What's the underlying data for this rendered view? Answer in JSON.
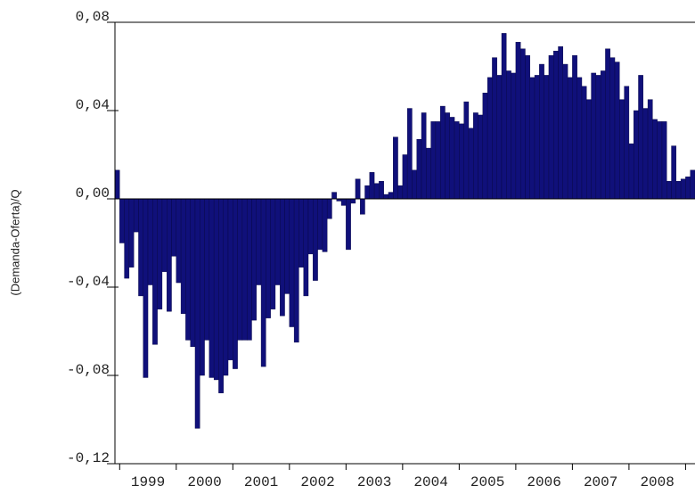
{
  "chart_data": {
    "type": "bar",
    "y_label": "(Demanda-Oferta)/Q",
    "categories": [
      null,
      null,
      null,
      null,
      null,
      null,
      null,
      "1999",
      null,
      null,
      null,
      null,
      null,
      null,
      null,
      null,
      null,
      null,
      null,
      "2000",
      null,
      null,
      null,
      null,
      null,
      null,
      null,
      null,
      null,
      null,
      null,
      "2001",
      null,
      null,
      null,
      null,
      null,
      null,
      null,
      null,
      null,
      null,
      null,
      "2002",
      null,
      null,
      null,
      null,
      null,
      null,
      null,
      null,
      null,
      null,
      null,
      "2003",
      null,
      null,
      null,
      null,
      null,
      null,
      null,
      null,
      null,
      null,
      null,
      "2004",
      null,
      null,
      null,
      null,
      null,
      null,
      null,
      null,
      null,
      null,
      null,
      "2005",
      null,
      null,
      null,
      null,
      null,
      null,
      null,
      null,
      null,
      null,
      null,
      "2006",
      null,
      null,
      null,
      null,
      null,
      null,
      null,
      null,
      null,
      null,
      null,
      "2007",
      null,
      null,
      null,
      null,
      null,
      null,
      null,
      null,
      null,
      null,
      null,
      "2008",
      null,
      null,
      null,
      null,
      null,
      null,
      null
    ],
    "values": [
      0.013,
      -0.02,
      -0.036,
      -0.031,
      -0.015,
      -0.044,
      -0.081,
      -0.039,
      -0.066,
      -0.05,
      -0.033,
      -0.051,
      -0.026,
      -0.038,
      -0.052,
      -0.064,
      -0.067,
      -0.104,
      -0.08,
      -0.064,
      -0.081,
      -0.082,
      -0.088,
      -0.08,
      -0.073,
      -0.077,
      -0.064,
      -0.064,
      -0.064,
      -0.055,
      -0.039,
      -0.076,
      -0.054,
      -0.05,
      -0.039,
      -0.053,
      -0.043,
      -0.058,
      -0.065,
      -0.031,
      -0.044,
      -0.025,
      -0.037,
      -0.023,
      -0.024,
      -0.009,
      0.003,
      -0.001,
      -0.003,
      -0.023,
      -0.002,
      0.009,
      -0.007,
      0.006,
      0.012,
      0.007,
      0.008,
      0.002,
      0.003,
      0.028,
      0.006,
      0.02,
      0.041,
      0.013,
      0.027,
      0.039,
      0.023,
      0.035,
      0.035,
      0.042,
      0.039,
      0.037,
      0.035,
      0.034,
      0.044,
      0.032,
      0.039,
      0.038,
      0.048,
      0.055,
      0.064,
      0.056,
      0.075,
      0.058,
      0.057,
      0.071,
      0.068,
      0.065,
      0.055,
      0.056,
      0.061,
      0.056,
      0.065,
      0.067,
      0.069,
      0.061,
      0.055,
      0.065,
      0.055,
      0.051,
      0.045,
      0.057,
      0.056,
      0.058,
      0.068,
      0.064,
      0.062,
      0.045,
      0.051,
      0.025,
      0.04,
      0.056,
      0.041,
      0.045,
      0.036,
      0.035,
      0.035,
      0.008,
      0.024,
      0.008,
      0.009,
      0.01,
      0.013
    ],
    "color": "#10107a",
    "ylim": [
      -0.12,
      0.08
    ],
    "yticks": [
      {
        "value": -0.12,
        "label": "-0,12"
      },
      {
        "value": -0.08,
        "label": "-0,08"
      },
      {
        "value": -0.04,
        "label": "-0,04"
      },
      {
        "value": 0,
        "label": "0,00"
      },
      {
        "value": 0.04,
        "label": "0,04"
      },
      {
        "value": 0.08,
        "label": "0,08"
      }
    ]
  }
}
